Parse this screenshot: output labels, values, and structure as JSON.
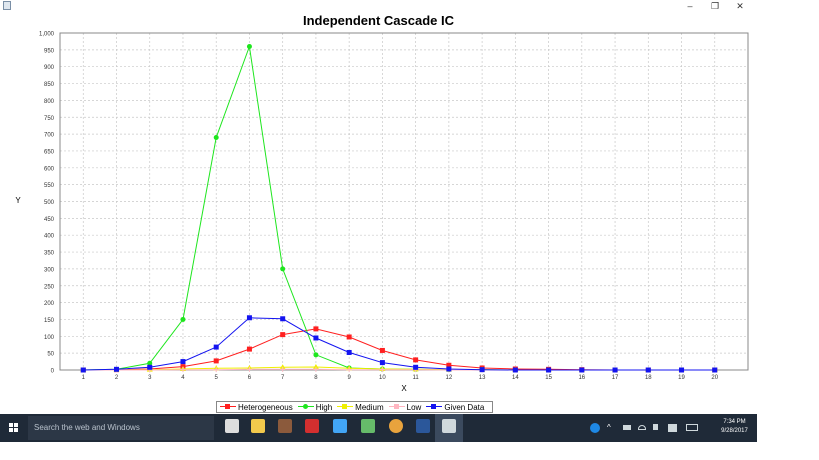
{
  "window": {
    "minimize_glyph": "‒",
    "maximize_glyph": "❐",
    "close_glyph": "✕"
  },
  "chart_data": {
    "type": "line",
    "title": "Independent Cascade IC",
    "xlabel": "X",
    "ylabel": "Y",
    "x": [
      1,
      2,
      3,
      4,
      5,
      6,
      7,
      8,
      9,
      10,
      11,
      12,
      13,
      14,
      15,
      16,
      17,
      18,
      19,
      20
    ],
    "x_tick_labels": [
      "1",
      "2",
      "3",
      "4",
      "5",
      "6",
      "7",
      "8",
      "9",
      "10",
      "11",
      "12",
      "13",
      "14",
      "15",
      "16",
      "17",
      "18",
      "19",
      "20"
    ],
    "xlim": [
      0.3,
      21
    ],
    "ylim": [
      0,
      1000
    ],
    "y_ticks": [
      0,
      50,
      100,
      150,
      200,
      250,
      300,
      350,
      400,
      450,
      500,
      550,
      600,
      650,
      700,
      750,
      800,
      850,
      900,
      950,
      1000
    ],
    "y_tick_labels": [
      "0",
      "50",
      "100",
      "150",
      "200",
      "250",
      "300",
      "350",
      "400",
      "450",
      "500",
      "550",
      "600",
      "650",
      "700",
      "750",
      "800",
      "850",
      "900",
      "950",
      "1,000"
    ],
    "grid": true,
    "legend_position": "bottom",
    "series": [
      {
        "name": "Heterogeneous",
        "color": "#ff2020",
        "marker": "square",
        "values": [
          0,
          1,
          3,
          10,
          27,
          62,
          105,
          122,
          98,
          58,
          30,
          14,
          6,
          3,
          2,
          1,
          0,
          0,
          0,
          0
        ]
      },
      {
        "name": "High",
        "color": "#1ee61e",
        "marker": "circle",
        "values": [
          0,
          2,
          20,
          150,
          690,
          960,
          300,
          45,
          6,
          3,
          2,
          1,
          1,
          0,
          0,
          0,
          0,
          0,
          0,
          0
        ]
      },
      {
        "name": "Medium",
        "color": "#f0f000",
        "marker": "triangle",
        "values": [
          0,
          0,
          1,
          3,
          5,
          6,
          8,
          9,
          5,
          3,
          2,
          1,
          1,
          0,
          0,
          0,
          0,
          0,
          0,
          0
        ]
      },
      {
        "name": "Low",
        "color": "#ffb6c1",
        "marker": "cross",
        "values": [
          0,
          0,
          0,
          1,
          1,
          2,
          2,
          2,
          1,
          1,
          1,
          0,
          0,
          0,
          0,
          0,
          0,
          0,
          0,
          0
        ]
      },
      {
        "name": "Given Data",
        "color": "#1414f0",
        "marker": "square",
        "values": [
          0,
          2,
          8,
          25,
          68,
          155,
          152,
          95,
          52,
          22,
          8,
          3,
          1,
          0,
          0,
          0,
          0,
          0,
          0,
          0
        ]
      }
    ]
  },
  "taskbar": {
    "search_placeholder": "Search the web and Windows",
    "apps": [
      {
        "icon": "task-view-icon",
        "color": "#dddddd"
      },
      {
        "icon": "file-explorer-icon",
        "color": "#f2c94c"
      },
      {
        "icon": "game-icon",
        "color": "#8b5a3c"
      },
      {
        "icon": "pdf-reader-icon",
        "color": "#d32f2f"
      },
      {
        "icon": "app-blue-icon",
        "color": "#42a5f5"
      },
      {
        "icon": "app-green-icon",
        "color": "#66bb6a"
      },
      {
        "icon": "chrome-icon",
        "color": "#e8a33d"
      },
      {
        "icon": "word-icon",
        "color": "#2b579a"
      },
      {
        "icon": "java-app-icon",
        "color": "#cfd8dc"
      }
    ],
    "clock_time": "7:34 PM",
    "clock_date": "9/28/2017"
  }
}
